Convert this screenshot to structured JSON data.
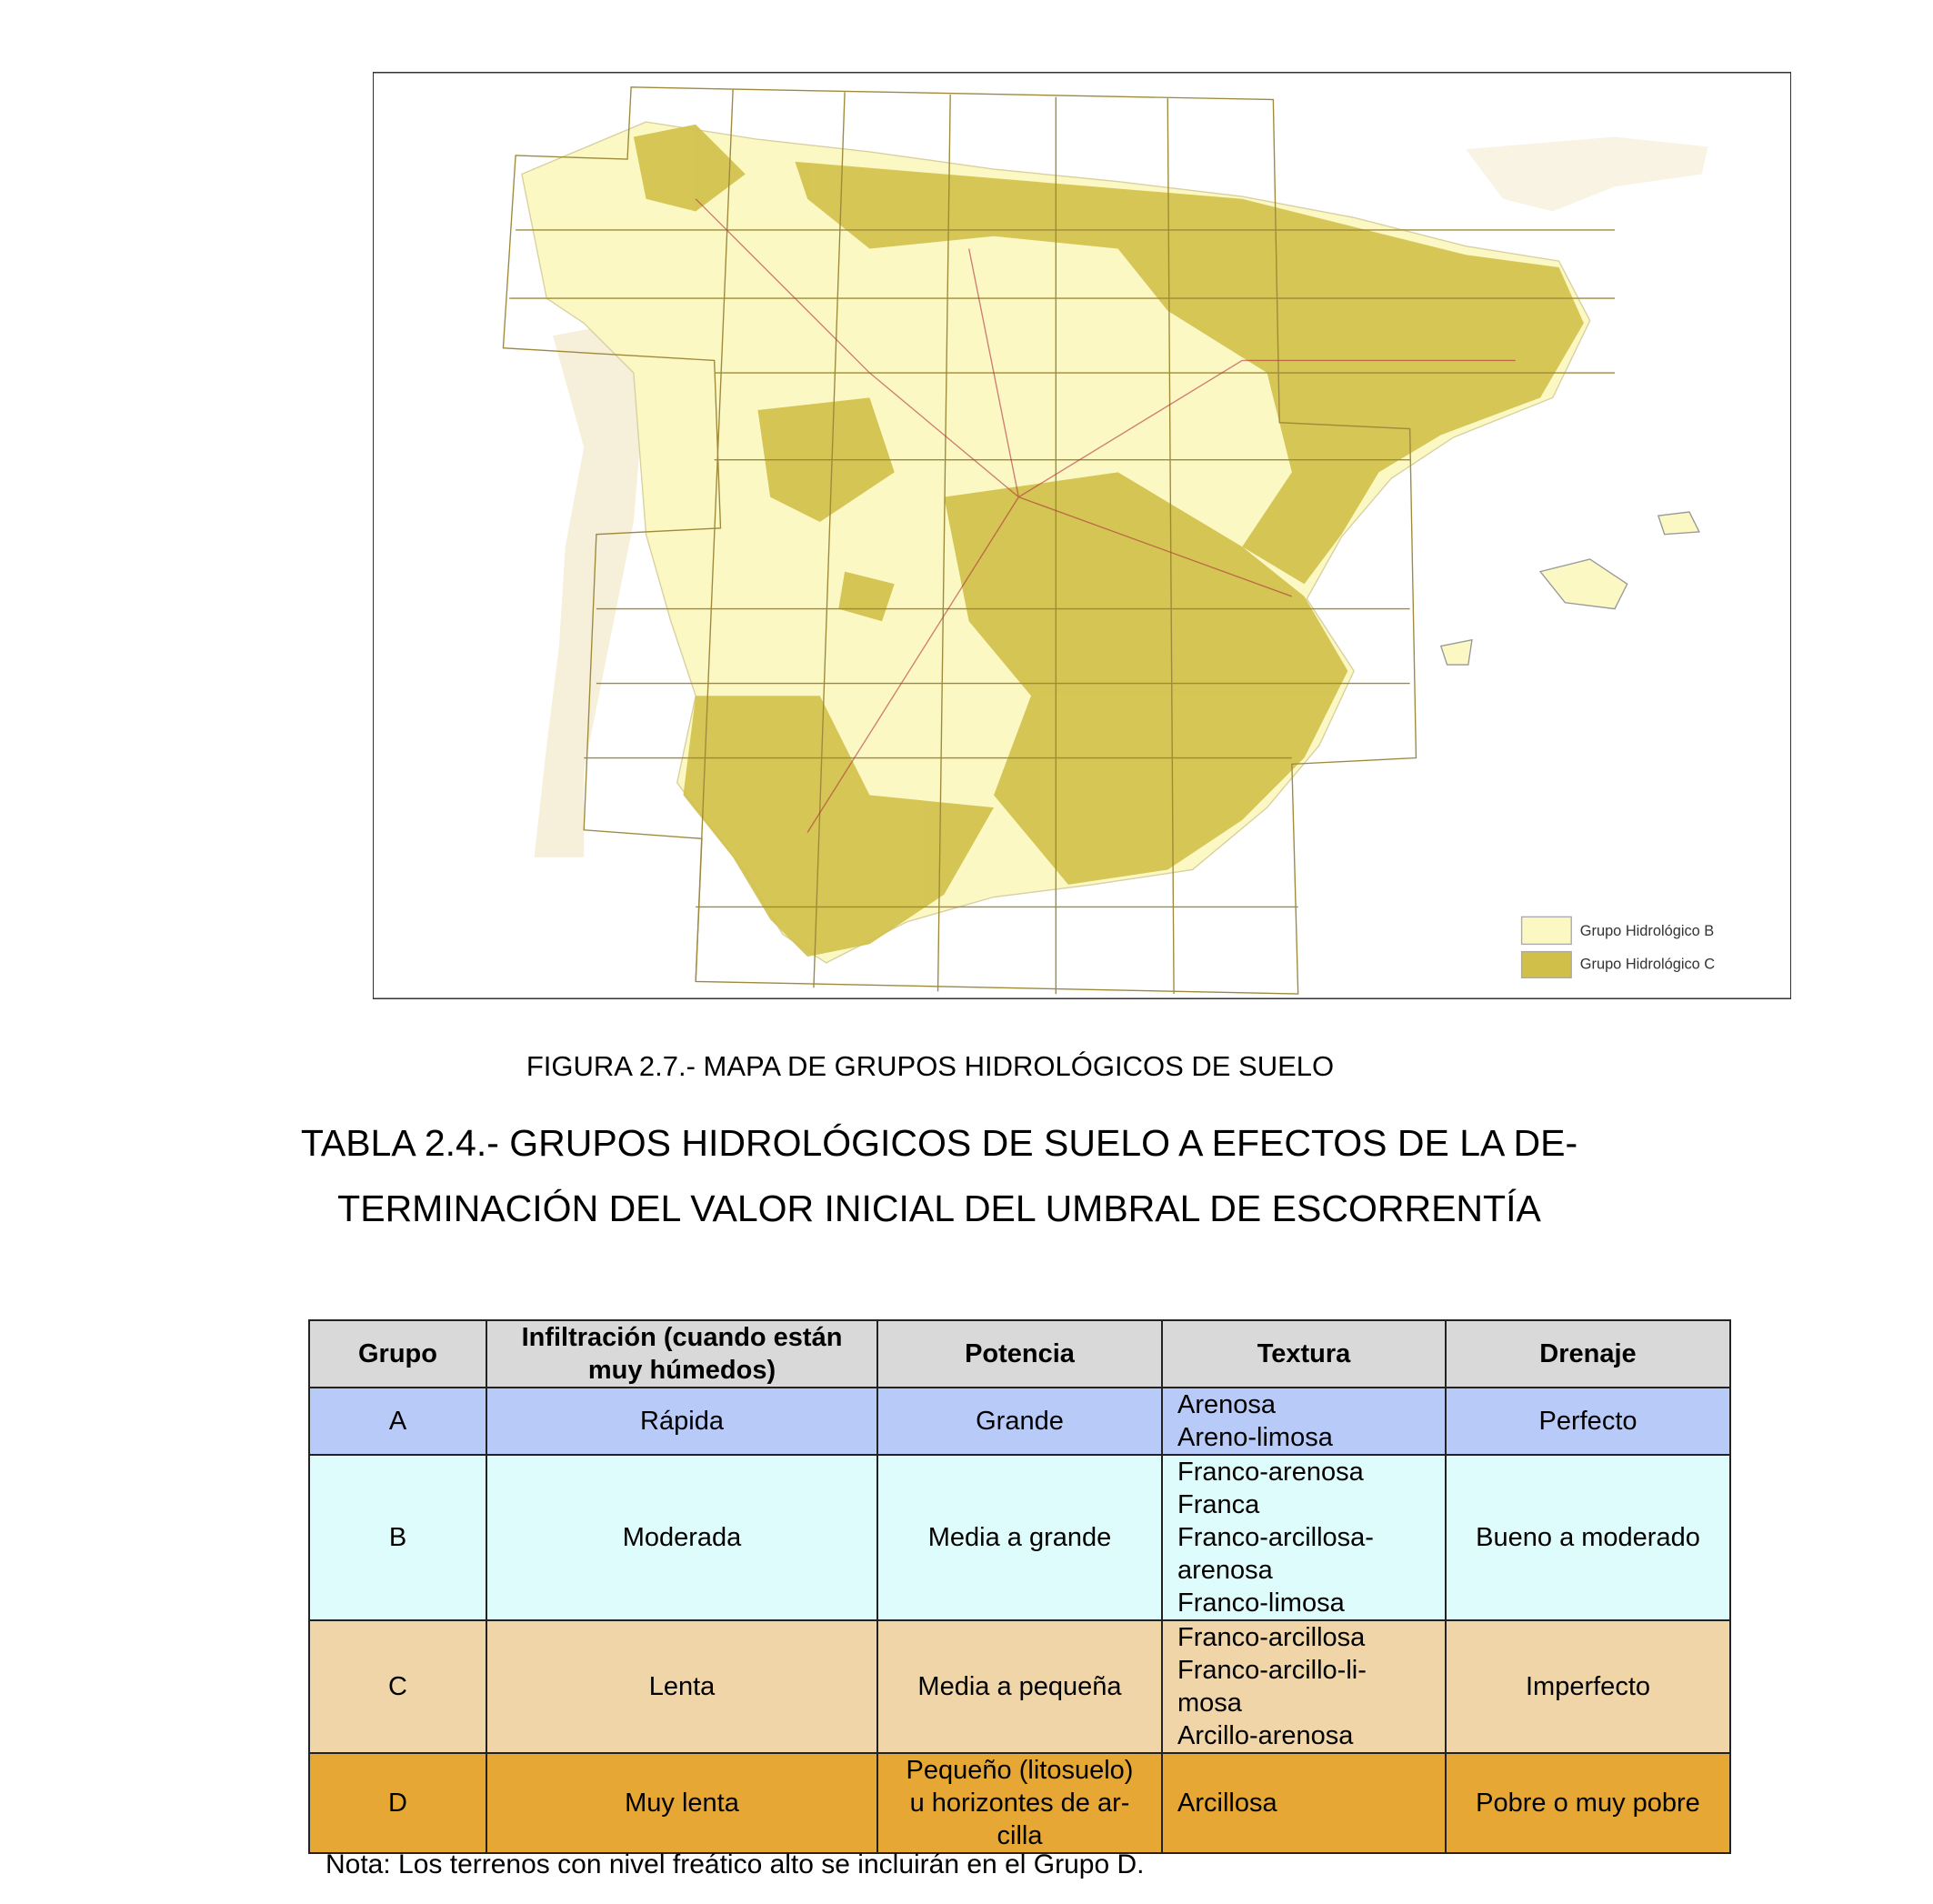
{
  "figure": {
    "legend": [
      "Grupo Hidrológico B",
      "Grupo Hidrológico C"
    ],
    "caption": "FIGURA 2.7.- MAPA DE GRUPOS HIDROLÓGICOS DE SUELO"
  },
  "table": {
    "title": [
      "TABLA 2.4.- GRUPOS HIDROLÓGICOS DE SUELO A EFECTOS DE LA DE-",
      "TERMINACIÓN DEL VALOR INICIAL DEL UMBRAL DE ESCORRENTÍA"
    ],
    "header": [
      "Grupo",
      "Infiltración (cuando están muy húmedos)",
      "Potencia",
      "Textura",
      "Drenaje"
    ],
    "rows": [
      [
        "A",
        "Rápida",
        "Grande",
        [
          "Arenosa",
          "Areno-limosa"
        ],
        "Perfecto"
      ],
      [
        "B",
        "Moderada",
        "Media a grande",
        [
          "Franco-arenosa",
          "Franca",
          "Franco-arcillosa-",
          "arenosa",
          "Franco-limosa"
        ],
        "Bueno a moderado"
      ],
      [
        "C",
        "Lenta",
        "Media a pequeña",
        [
          "Franco-arcillosa",
          "Franco-arcillo-li-",
          "mosa",
          "Arcillo-arenosa"
        ],
        "Imperfecto"
      ],
      [
        "D",
        "Muy lenta",
        [
          "Pequeño (litosuelo)",
          "u horizontes de ar-",
          "cilla"
        ],
        "Arcillosa",
        "Pobre o muy pobre"
      ]
    ],
    "note": "Nota: Los terrenos con nivel freático alto se incluirán en el Grupo D."
  }
}
